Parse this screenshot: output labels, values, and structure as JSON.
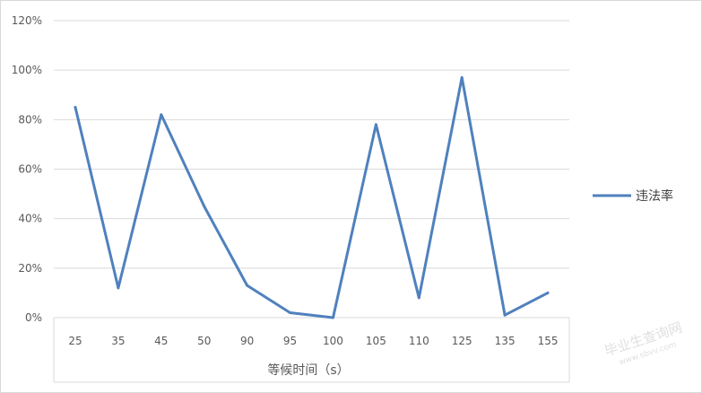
{
  "chart_data": {
    "type": "line",
    "categories": [
      "25",
      "35",
      "45",
      "50",
      "90",
      "95",
      "100",
      "105",
      "110",
      "125",
      "135",
      "155"
    ],
    "series": [
      {
        "name": "违法率",
        "values": [
          0.85,
          0.12,
          0.82,
          0.45,
          0.13,
          0.02,
          0.0,
          0.78,
          0.08,
          0.97,
          0.01,
          0.1
        ],
        "color": "#4f81bd"
      }
    ],
    "xlabel": "等候时间（s）",
    "ylabel": "",
    "ylim": [
      0,
      1.2
    ],
    "yticks": [
      0,
      0.2,
      0.4,
      0.6,
      0.8,
      1.0,
      1.2
    ],
    "ytick_labels": [
      "0%",
      "20%",
      "40%",
      "60%",
      "80%",
      "100%",
      "120%"
    ],
    "grid": true,
    "legend_position": "right"
  },
  "colors": {
    "line": "#4f81bd",
    "grid": "#d9d9d9",
    "text": "#595959"
  },
  "watermark": {
    "line1": "毕业生查询网",
    "line2": "www.sbvv.com"
  }
}
